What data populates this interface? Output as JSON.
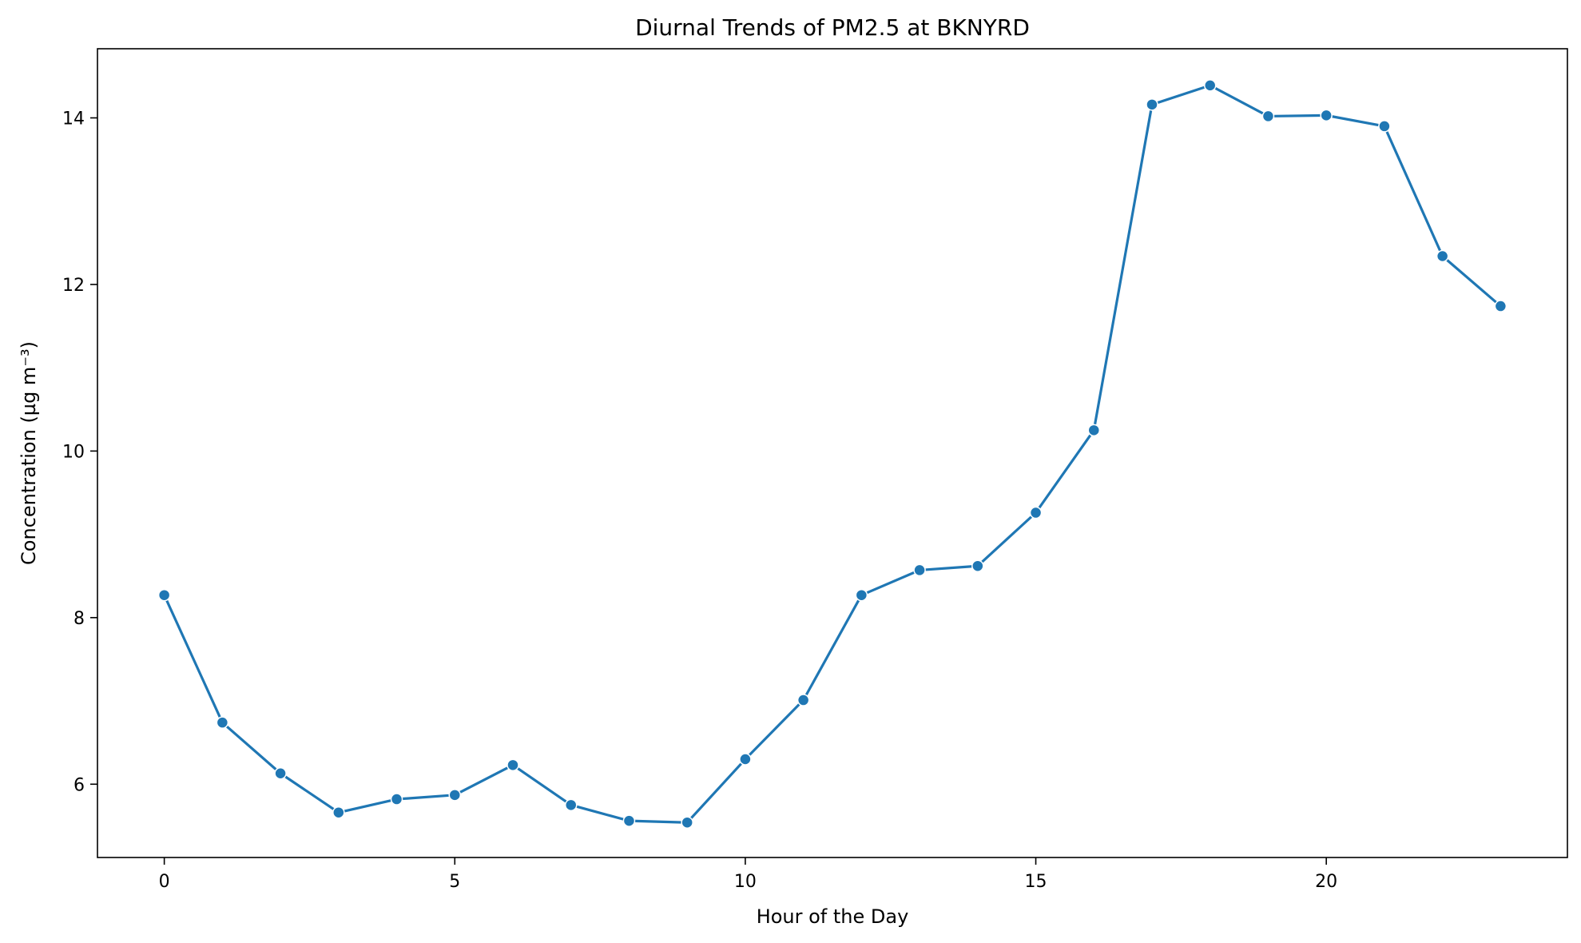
{
  "chart_data": {
    "type": "line",
    "title": "Diurnal Trends of PM2.5 at BKNYRD",
    "xlabel": "Hour of the Day",
    "ylabel": "Concentration (µg m⁻³)",
    "x": [
      0,
      1,
      2,
      3,
      4,
      5,
      6,
      7,
      8,
      9,
      10,
      11,
      12,
      13,
      14,
      15,
      16,
      17,
      18,
      19,
      20,
      21,
      22,
      23
    ],
    "series": [
      {
        "values": [
          8.27,
          6.74,
          6.13,
          5.66,
          5.82,
          5.87,
          6.23,
          5.75,
          5.56,
          5.54,
          6.3,
          7.01,
          8.27,
          8.57,
          8.62,
          9.26,
          10.25,
          14.16,
          14.39,
          14.02,
          14.03,
          13.9,
          12.34,
          11.74
        ],
        "color": "#1f77b4",
        "marker": "circle"
      }
    ],
    "xlim": [
      -1.15,
      24.15
    ],
    "ylim": [
      5.12,
      14.83
    ],
    "xticks": [
      0,
      5,
      10,
      15,
      20
    ],
    "yticks": [
      6,
      8,
      10,
      12,
      14
    ],
    "grid": false,
    "legend": "none"
  }
}
